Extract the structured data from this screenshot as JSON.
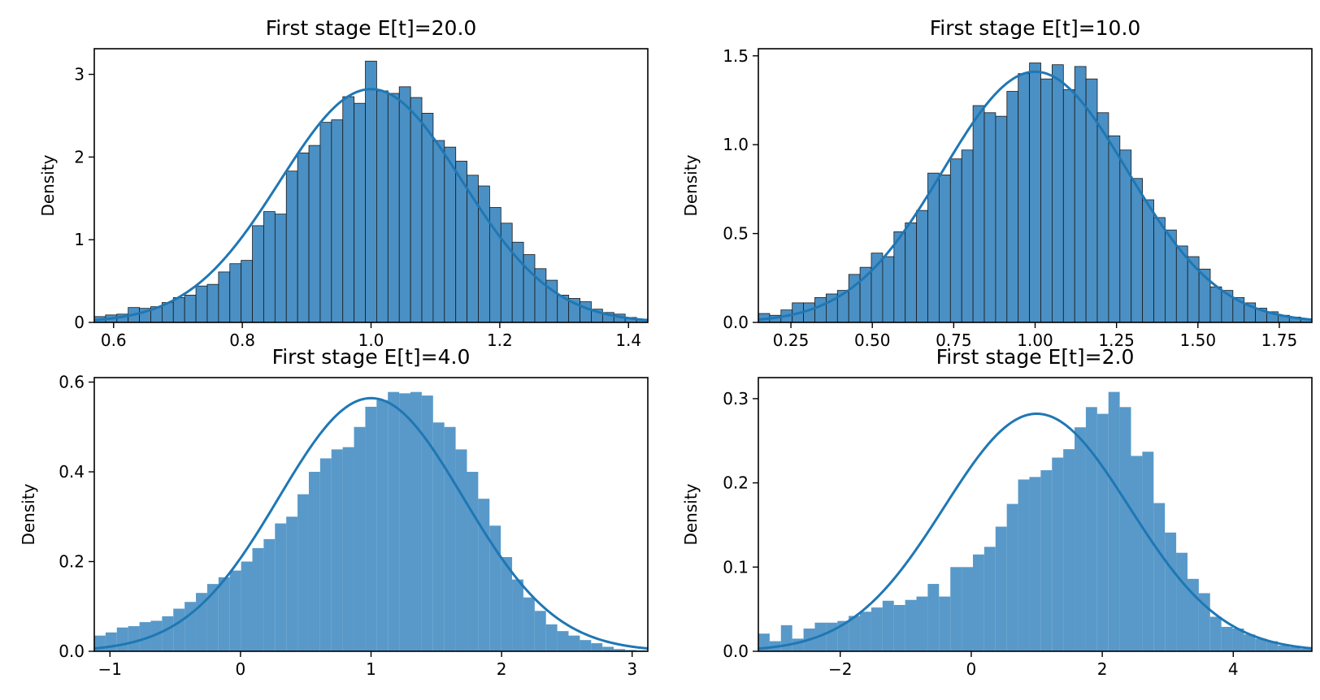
{
  "chart_data": [
    {
      "type": "bar",
      "title": "First stage E[t]=20.0",
      "xlabel": "",
      "ylabel": "Density",
      "xlim": [
        0.57,
        1.43
      ],
      "ylim": [
        0,
        3.31
      ],
      "xticks": [
        0.6,
        0.8,
        1.0,
        1.2,
        1.4
      ],
      "xtick_labels": [
        "0.6",
        "0.8",
        "1.0",
        "1.2",
        "1.4"
      ],
      "yticks": [
        0,
        1,
        2,
        3
      ],
      "ytick_labels": [
        "0",
        "1",
        "2",
        "3"
      ],
      "bar_edges": true,
      "bin_start": 0.57,
      "bin_width": 0.01755,
      "densities": [
        0.07,
        0.09,
        0.1,
        0.18,
        0.17,
        0.19,
        0.24,
        0.3,
        0.33,
        0.44,
        0.46,
        0.61,
        0.71,
        0.75,
        1.17,
        1.34,
        1.31,
        1.83,
        2.05,
        2.14,
        2.42,
        2.45,
        2.73,
        2.65,
        3.16,
        2.8,
        2.77,
        2.85,
        2.72,
        2.53,
        2.2,
        2.12,
        1.95,
        1.78,
        1.65,
        1.39,
        1.2,
        0.97,
        0.82,
        0.65,
        0.51,
        0.33,
        0.29,
        0.25,
        0.16,
        0.12,
        0.1,
        0.06,
        0.04
      ],
      "curve": {
        "type": "normal",
        "mean": 1.0,
        "sd": 0.1414
      }
    },
    {
      "type": "bar",
      "title": "First stage E[t]=10.0",
      "xlabel": "",
      "ylabel": "Density",
      "xlim": [
        0.15,
        1.85
      ],
      "ylim": [
        0,
        1.54
      ],
      "xticks": [
        0.25,
        0.5,
        0.75,
        1.0,
        1.25,
        1.5,
        1.75
      ],
      "xtick_labels": [
        "0.25",
        "0.50",
        "0.75",
        "1.00",
        "1.25",
        "1.50",
        "1.75"
      ],
      "yticks": [
        0,
        0.5,
        1.0,
        1.5
      ],
      "ytick_labels": [
        "0.0",
        "0.5",
        "1.0",
        "1.5"
      ],
      "bar_edges": true,
      "bin_start": 0.15,
      "bin_width": 0.0347,
      "densities": [
        0.05,
        0.04,
        0.07,
        0.11,
        0.11,
        0.14,
        0.16,
        0.18,
        0.27,
        0.31,
        0.39,
        0.37,
        0.51,
        0.56,
        0.63,
        0.84,
        0.83,
        0.92,
        0.97,
        1.22,
        1.18,
        1.16,
        1.3,
        1.4,
        1.46,
        1.37,
        1.45,
        1.31,
        1.44,
        1.37,
        1.18,
        1.05,
        0.97,
        0.81,
        0.69,
        0.59,
        0.52,
        0.43,
        0.37,
        0.3,
        0.2,
        0.18,
        0.14,
        0.11,
        0.08,
        0.06,
        0.04,
        0.03,
        0.02
      ],
      "curve": {
        "type": "normal",
        "mean": 1.0,
        "sd": 0.2828
      }
    },
    {
      "type": "bar",
      "title": "First stage E[t]=4.0",
      "xlabel": "",
      "ylabel": "Density",
      "xlim": [
        -1.12,
        3.12
      ],
      "ylim": [
        0,
        0.61
      ],
      "xticks": [
        -1,
        0,
        1,
        2,
        3
      ],
      "xtick_labels": [
        "−1",
        "0",
        "1",
        "2",
        "3"
      ],
      "yticks": [
        0,
        0.2,
        0.4,
        0.6
      ],
      "ytick_labels": [
        "0.0",
        "0.2",
        "0.4",
        "0.6"
      ],
      "bar_edges": false,
      "bin_start": -1.12,
      "bin_width": 0.0865,
      "densities": [
        0.035,
        0.042,
        0.053,
        0.056,
        0.065,
        0.068,
        0.078,
        0.095,
        0.11,
        0.13,
        0.15,
        0.165,
        0.18,
        0.2,
        0.23,
        0.25,
        0.285,
        0.3,
        0.35,
        0.4,
        0.43,
        0.45,
        0.455,
        0.5,
        0.545,
        0.56,
        0.578,
        0.575,
        0.578,
        0.57,
        0.51,
        0.5,
        0.45,
        0.4,
        0.34,
        0.28,
        0.21,
        0.16,
        0.12,
        0.09,
        0.06,
        0.045,
        0.035,
        0.025,
        0.018,
        0.01,
        0.005,
        0.003,
        0.002
      ],
      "curve": {
        "type": "normal",
        "mean": 1.0,
        "sd": 0.7071
      }
    },
    {
      "type": "bar",
      "title": "First stage E[t]=2.0",
      "xlabel": "",
      "ylabel": "Density",
      "xlim": [
        -3.25,
        5.2
      ],
      "ylim": [
        0,
        0.325
      ],
      "xticks": [
        -2,
        0,
        2,
        4
      ],
      "xtick_labels": [
        "−2",
        "0",
        "2",
        "4"
      ],
      "yticks": [
        0,
        0.1,
        0.2,
        0.3
      ],
      "ytick_labels": [
        "0.0",
        "0.1",
        "0.2",
        "0.3"
      ],
      "bar_edges": false,
      "bin_start": -3.25,
      "bin_width": 0.1724,
      "densities": [
        0.021,
        0.012,
        0.031,
        0.015,
        0.027,
        0.034,
        0.034,
        0.036,
        0.042,
        0.047,
        0.052,
        0.06,
        0.055,
        0.061,
        0.065,
        0.08,
        0.065,
        0.1,
        0.1,
        0.115,
        0.124,
        0.148,
        0.175,
        0.204,
        0.207,
        0.215,
        0.23,
        0.24,
        0.266,
        0.29,
        0.282,
        0.308,
        0.29,
        0.232,
        0.237,
        0.176,
        0.141,
        0.117,
        0.086,
        0.069,
        0.041,
        0.029,
        0.027,
        0.02,
        0.015,
        0.012,
        0.007,
        0.005,
        0.003
      ],
      "curve": {
        "type": "normal",
        "mean": 1.0,
        "sd": 1.4142
      }
    }
  ],
  "colors": {
    "bar_fill": "#4a90c4",
    "bar_edge": "#1a1a1a",
    "curve": "#1f77b4",
    "axes": "#000000"
  }
}
